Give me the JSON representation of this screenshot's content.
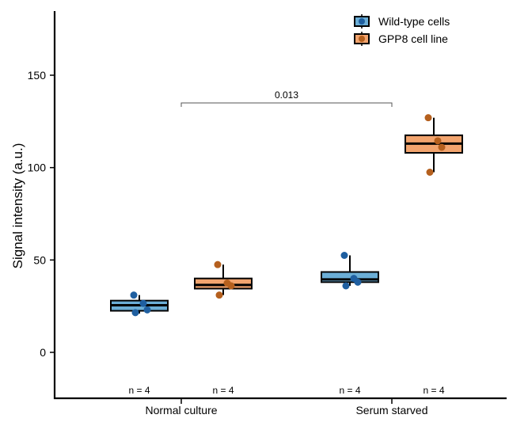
{
  "chart_data": {
    "type": "box",
    "ylabel": "Signal intensity (a.u.)",
    "xlabel": "",
    "ylim": [
      -25,
      185
    ],
    "yticks": [
      0,
      50,
      100,
      150
    ],
    "categories": [
      "Normal culture",
      "Serum starved"
    ],
    "series": [
      {
        "name": "Wild-type cells",
        "color": "#6baed6",
        "point_color": "#1f5fa0",
        "boxes": [
          {
            "category": "Normal culture",
            "min": 21,
            "q1": 22.5,
            "median": 25.5,
            "q3": 28,
            "max": 31,
            "points": [
              31,
              26.5,
              23,
              21.5
            ],
            "n_label": "n = 4"
          },
          {
            "category": "Serum starved",
            "min": 36,
            "q1": 38,
            "median": 39.5,
            "q3": 43.5,
            "max": 52.5,
            "points": [
              52.5,
              40,
              38,
              36
            ],
            "n_label": "n = 4"
          }
        ]
      },
      {
        "name": "GPP8 cell line",
        "color": "#f2a46e",
        "point_color": "#b5601e",
        "boxes": [
          {
            "category": "Normal culture",
            "min": 31,
            "q1": 34.5,
            "median": 36.5,
            "q3": 40,
            "max": 47.5,
            "points": [
              47.5,
              37.5,
              36,
              31
            ],
            "n_label": "n = 4"
          },
          {
            "category": "Serum starved",
            "min": 97.5,
            "q1": 108,
            "median": 113,
            "q3": 117.5,
            "max": 127,
            "points": [
              127,
              114.5,
              111,
              97.5
            ],
            "n_label": "n = 4"
          }
        ]
      }
    ],
    "annotation": {
      "label": "0.013",
      "y": 135,
      "from_category": "Normal culture",
      "to_category": "Serum starved"
    },
    "legend_position": "top-right",
    "grid": false
  }
}
